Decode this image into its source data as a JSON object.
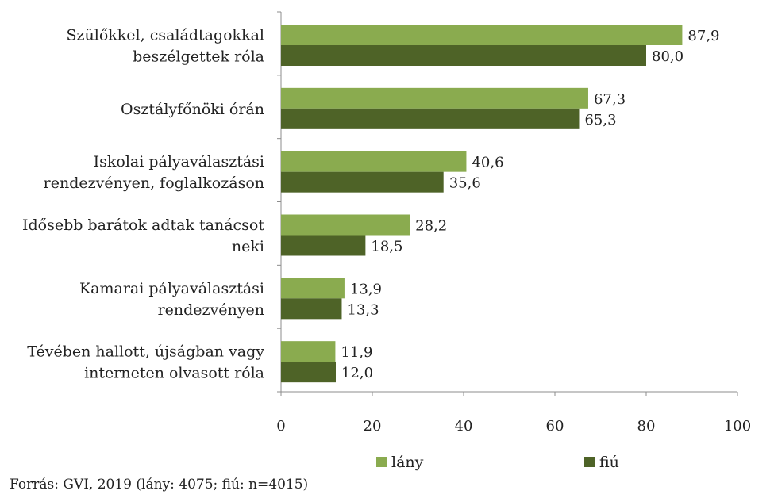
{
  "chart_data": {
    "type": "bar",
    "orientation": "horizontal",
    "categories": [
      [
        "Szülőkkel, családtagokkal",
        "beszélgettek róla"
      ],
      [
        "Osztályfőnöki órán"
      ],
      [
        "Iskolai pályaválasztási",
        "rendezvényen, foglalkozáson"
      ],
      [
        "Idősebb barátok adtak tanácsot",
        "neki"
      ],
      [
        "Kamarai pályaválasztási",
        "rendezvényen"
      ],
      [
        "Tévében hallott, újságban vagy",
        "interneten olvasott róla"
      ]
    ],
    "series": [
      {
        "name": "lány",
        "color": "#8aab4f",
        "values": [
          87.9,
          67.3,
          40.6,
          28.2,
          13.9,
          11.9
        ],
        "labels": [
          "87,9",
          "67,3",
          "40,6",
          "28,2",
          "13,9",
          "11,9"
        ]
      },
      {
        "name": "fiú",
        "color": "#4e6327",
        "values": [
          80.0,
          65.3,
          35.6,
          18.5,
          13.3,
          12.0
        ],
        "labels": [
          "80,0",
          "65,3",
          "35,6",
          "18,5",
          "13,3",
          "12,0"
        ]
      }
    ],
    "xlim": [
      0,
      100
    ],
    "xticks": [
      0,
      20,
      40,
      60,
      80,
      100
    ],
    "legend_position": "bottom",
    "grid": false
  },
  "source_note": "Forrás: GVI, 2019 (lány: 4075; fiú: n=4015)"
}
